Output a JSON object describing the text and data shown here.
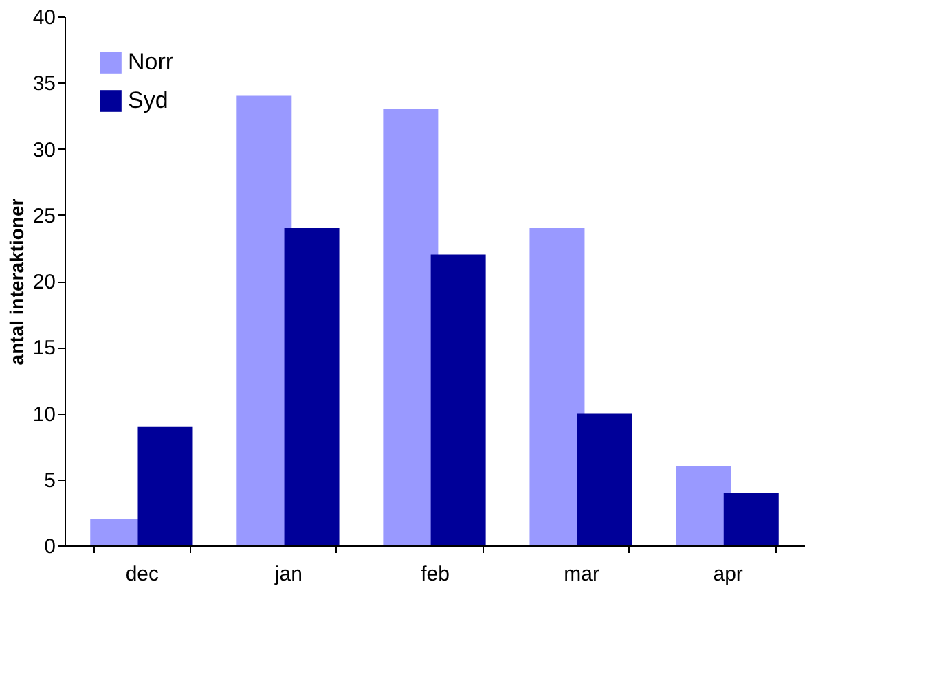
{
  "chart_data": {
    "type": "bar",
    "ylabel": "antal interaktioner",
    "categories": [
      "dec",
      "jan",
      "feb",
      "mar",
      "apr"
    ],
    "series": [
      {
        "name": "Norr",
        "color": "#9999ff",
        "values": [
          2,
          34,
          33,
          24,
          6
        ]
      },
      {
        "name": "Syd",
        "color": "#000099",
        "values": [
          9,
          24,
          22,
          10,
          4
        ]
      }
    ],
    "ylim": [
      0,
      40
    ],
    "yticks": [
      0,
      5,
      10,
      15,
      20,
      25,
      30,
      35,
      40
    ],
    "grid": false,
    "legend": "top left"
  }
}
